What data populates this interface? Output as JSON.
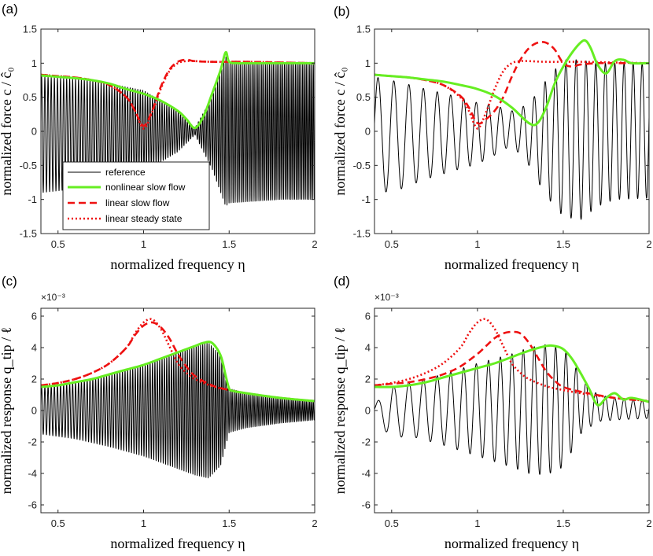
{
  "chart_data": [
    {
      "panel": "(a)",
      "type": "line",
      "xlabel": "normalized frequency η",
      "ylabel": "normalized force c / ĉ₀",
      "xlim": [
        0.4,
        2.0
      ],
      "ylim": [
        -1.5,
        1.5
      ],
      "xticks": [
        "0.5",
        "1",
        "1.5",
        "2"
      ],
      "yticks": [
        "-1.5",
        "-1",
        "-0.5",
        "0",
        "0.5",
        "1",
        "1.5"
      ],
      "exponent": "",
      "legend": {
        "position": "lower-left",
        "entries": [
          {
            "label": "reference",
            "color": "#000000",
            "style": "solid"
          },
          {
            "label": "nonlinear slow flow",
            "color": "#66ee22",
            "style": "solid"
          },
          {
            "label": "linear slow flow",
            "color": "#ee1111",
            "style": "dashed"
          },
          {
            "label": "linear steady state",
            "color": "#ee1111",
            "style": "dotted"
          }
        ]
      },
      "series": [
        {
          "name": "nonlinear slow flow",
          "x": [
            0.4,
            0.5,
            0.6,
            0.7,
            0.8,
            0.9,
            1.0,
            1.1,
            1.2,
            1.25,
            1.3,
            1.35,
            1.4,
            1.45,
            1.48,
            1.5,
            1.55,
            1.6,
            1.8,
            2.0
          ],
          "y": [
            0.82,
            0.8,
            0.78,
            0.75,
            0.7,
            0.62,
            0.55,
            0.45,
            0.3,
            0.18,
            0.05,
            0.22,
            0.55,
            0.9,
            1.16,
            1.02,
            1.0,
            1.0,
            1.0,
            1.0
          ]
        },
        {
          "name": "linear slow flow",
          "x": [
            0.4,
            0.5,
            0.6,
            0.7,
            0.8,
            0.9,
            0.95,
            1.0,
            1.05,
            1.1,
            1.15,
            1.2,
            1.25,
            1.3,
            1.4,
            1.6,
            1.8,
            2.0
          ],
          "y": [
            0.83,
            0.81,
            0.79,
            0.75,
            0.68,
            0.5,
            0.3,
            0.08,
            0.3,
            0.65,
            0.9,
            1.02,
            1.05,
            1.03,
            1.02,
            1.02,
            1.01,
            1.0
          ]
        },
        {
          "name": "linear steady state",
          "x": [
            0.4,
            0.5,
            0.6,
            0.7,
            0.8,
            0.9,
            0.95,
            1.0,
            1.05,
            1.1,
            1.15,
            1.2,
            1.25,
            1.3,
            1.4,
            1.6,
            1.8,
            2.0
          ],
          "y": [
            0.83,
            0.81,
            0.79,
            0.75,
            0.68,
            0.5,
            0.3,
            0.04,
            0.28,
            0.62,
            0.88,
            1.0,
            1.03,
            1.03,
            1.02,
            1.02,
            1.01,
            1.0
          ]
        },
        {
          "name": "reference",
          "x": [
            0.4,
            0.7,
            1.0,
            1.2,
            1.3,
            1.4,
            1.48,
            1.5,
            1.8,
            2.0
          ],
          "y_upper": [
            0.8,
            0.75,
            0.6,
            0.3,
            0.05,
            0.5,
            1.1,
            1.0,
            1.0,
            1.0
          ],
          "y_lower": [
            -0.9,
            -0.82,
            -0.6,
            -0.3,
            -0.05,
            -0.55,
            -1.1,
            -1.05,
            -1.0,
            -1.0
          ],
          "cycles": 120
        }
      ]
    },
    {
      "panel": "(b)",
      "type": "line",
      "xlabel": "normalized frequency η",
      "ylabel": "normalized force c / ĉ₀",
      "xlim": [
        0.4,
        2.0
      ],
      "ylim": [
        -1.5,
        1.5
      ],
      "xticks": [
        "0.5",
        "1",
        "1.5",
        "2"
      ],
      "yticks": [
        "-1.5",
        "-1",
        "-0.5",
        "0",
        "0.5",
        "1",
        "1.5"
      ],
      "exponent": "",
      "series": [
        {
          "name": "nonlinear slow flow",
          "x": [
            0.4,
            0.5,
            0.6,
            0.7,
            0.8,
            0.9,
            1.0,
            1.1,
            1.2,
            1.3,
            1.35,
            1.4,
            1.45,
            1.5,
            1.55,
            1.6,
            1.63,
            1.66,
            1.7,
            1.75,
            1.8,
            1.85,
            1.9,
            2.0
          ],
          "y": [
            0.83,
            0.81,
            0.79,
            0.76,
            0.73,
            0.68,
            0.62,
            0.52,
            0.35,
            0.12,
            0.12,
            0.35,
            0.7,
            0.95,
            1.15,
            1.3,
            1.33,
            1.22,
            0.98,
            0.85,
            1.03,
            1.05,
            1.0,
            1.0
          ]
        },
        {
          "name": "linear slow flow",
          "x": [
            0.4,
            0.5,
            0.6,
            0.7,
            0.8,
            0.9,
            0.95,
            1.0,
            1.05,
            1.1,
            1.15,
            1.2,
            1.25,
            1.3,
            1.35,
            1.4,
            1.45,
            1.5,
            1.55,
            1.6,
            1.7,
            1.8,
            2.0
          ],
          "y": [
            0.83,
            0.81,
            0.79,
            0.75,
            0.68,
            0.52,
            0.35,
            0.12,
            0.18,
            0.3,
            0.5,
            0.8,
            1.05,
            1.22,
            1.3,
            1.3,
            1.2,
            1.0,
            0.95,
            0.98,
            1.0,
            1.0,
            1.0
          ]
        },
        {
          "name": "linear steady state",
          "x": [
            0.4,
            0.5,
            0.6,
            0.7,
            0.8,
            0.9,
            0.95,
            1.0,
            1.05,
            1.1,
            1.15,
            1.2,
            1.25,
            1.3,
            1.4,
            1.6,
            1.8,
            2.0
          ],
          "y": [
            0.83,
            0.81,
            0.79,
            0.75,
            0.68,
            0.5,
            0.3,
            0.04,
            0.28,
            0.62,
            0.88,
            1.0,
            1.03,
            1.03,
            1.02,
            1.02,
            1.01,
            1.0
          ]
        },
        {
          "name": "reference",
          "x": [
            0.4,
            0.55,
            0.7,
            0.9,
            1.0,
            1.1,
            1.2,
            1.3,
            1.4,
            1.5,
            1.6,
            1.7,
            1.8,
            2.0
          ],
          "y_upper": [
            0.8,
            0.72,
            0.62,
            0.5,
            0.42,
            0.38,
            0.3,
            0.4,
            0.75,
            1.05,
            1.05,
            1.0,
            1.0,
            1.0
          ],
          "y_lower": [
            -0.92,
            -0.85,
            -0.7,
            -0.55,
            -0.48,
            -0.35,
            -0.2,
            -0.5,
            -0.95,
            -1.25,
            -1.3,
            -1.1,
            -1.0,
            -0.98
          ],
          "cycles": 24
        }
      ]
    },
    {
      "panel": "(c)",
      "type": "line",
      "xlabel": "normalized frequency η",
      "ylabel": "normalized response q_tip / ℓ",
      "xlim": [
        0.4,
        2.0
      ],
      "ylim": [
        -6.5,
        6.5
      ],
      "xticks": [
        "0.5",
        "1",
        "1.5",
        "2"
      ],
      "yticks": [
        "-6",
        "-4",
        "-2",
        "0",
        "2",
        "4",
        "6"
      ],
      "exponent": "×10⁻³",
      "series": [
        {
          "name": "nonlinear slow flow",
          "x": [
            0.4,
            0.5,
            0.6,
            0.7,
            0.8,
            0.9,
            1.0,
            1.1,
            1.2,
            1.3,
            1.35,
            1.4,
            1.45,
            1.48,
            1.5,
            1.52,
            1.6,
            1.8,
            2.0
          ],
          "y": [
            1.5,
            1.6,
            1.8,
            2.0,
            2.3,
            2.6,
            2.9,
            3.3,
            3.7,
            4.1,
            4.3,
            4.3,
            3.5,
            2.2,
            1.4,
            1.25,
            1.1,
            0.8,
            0.6
          ]
        },
        {
          "name": "linear slow flow",
          "x": [
            0.4,
            0.5,
            0.6,
            0.7,
            0.8,
            0.9,
            0.95,
            1.0,
            1.05,
            1.1,
            1.15,
            1.2,
            1.25,
            1.3,
            1.4,
            1.5,
            1.6,
            1.8,
            2.0
          ],
          "y": [
            1.6,
            1.75,
            2.0,
            2.4,
            3.0,
            4.0,
            4.8,
            5.4,
            5.6,
            5.3,
            4.6,
            3.6,
            2.8,
            2.2,
            1.6,
            1.3,
            1.1,
            0.8,
            0.6
          ]
        },
        {
          "name": "linear steady state",
          "x": [
            0.4,
            0.5,
            0.6,
            0.7,
            0.8,
            0.9,
            0.95,
            1.0,
            1.05,
            1.1,
            1.15,
            1.2,
            1.25,
            1.3,
            1.4,
            1.5,
            1.6,
            1.8,
            2.0
          ],
          "y": [
            1.6,
            1.75,
            2.0,
            2.4,
            3.0,
            4.0,
            4.9,
            5.6,
            5.8,
            5.2,
            4.1,
            3.0,
            2.4,
            2.0,
            1.55,
            1.3,
            1.1,
            0.8,
            0.6
          ]
        },
        {
          "name": "reference",
          "x": [
            0.4,
            0.6,
            0.8,
            1.0,
            1.2,
            1.3,
            1.38,
            1.45,
            1.5,
            1.6,
            1.8,
            2.0
          ],
          "y_upper": [
            1.5,
            1.8,
            2.3,
            2.9,
            3.7,
            4.1,
            4.3,
            3.5,
            1.4,
            1.1,
            0.8,
            0.6
          ],
          "y_lower": [
            -1.5,
            -1.8,
            -2.3,
            -2.9,
            -3.7,
            -4.1,
            -4.3,
            -3.5,
            -1.4,
            -1.1,
            -0.8,
            -0.6
          ],
          "cycles": 120
        }
      ]
    },
    {
      "panel": "(d)",
      "type": "line",
      "xlabel": "normalized frequency η",
      "ylabel": "normalized response q_tip / ℓ",
      "xlim": [
        0.4,
        2.0
      ],
      "ylim": [
        -6.5,
        6.5
      ],
      "xticks": [
        "0.5",
        "1",
        "1.5",
        "2"
      ],
      "yticks": [
        "-6",
        "-4",
        "-2",
        "0",
        "2",
        "4",
        "6"
      ],
      "exponent": "×10⁻³",
      "series": [
        {
          "name": "nonlinear slow flow",
          "x": [
            0.4,
            0.5,
            0.6,
            0.7,
            0.8,
            0.9,
            1.0,
            1.1,
            1.2,
            1.3,
            1.4,
            1.45,
            1.5,
            1.55,
            1.6,
            1.65,
            1.7,
            1.75,
            1.8,
            1.85,
            1.9,
            2.0
          ],
          "y": [
            1.5,
            1.5,
            1.6,
            1.8,
            2.1,
            2.4,
            2.7,
            3.0,
            3.4,
            3.8,
            4.1,
            4.1,
            3.9,
            3.3,
            2.4,
            1.4,
            0.35,
            0.8,
            1.1,
            0.7,
            0.8,
            0.55
          ]
        },
        {
          "name": "linear slow flow",
          "x": [
            0.4,
            0.5,
            0.6,
            0.7,
            0.8,
            0.9,
            1.0,
            1.05,
            1.1,
            1.15,
            1.2,
            1.25,
            1.3,
            1.35,
            1.4,
            1.45,
            1.5,
            1.6,
            1.8,
            2.0
          ],
          "y": [
            1.6,
            1.7,
            1.8,
            2.0,
            2.3,
            2.8,
            3.6,
            4.1,
            4.6,
            4.9,
            5.0,
            4.9,
            4.3,
            3.4,
            2.5,
            1.9,
            1.5,
            1.2,
            0.8,
            0.6
          ]
        },
        {
          "name": "linear steady state",
          "x": [
            0.4,
            0.5,
            0.6,
            0.7,
            0.8,
            0.9,
            0.95,
            1.0,
            1.05,
            1.1,
            1.15,
            1.2,
            1.25,
            1.3,
            1.4,
            1.5,
            1.6,
            1.8,
            2.0
          ],
          "y": [
            1.6,
            1.75,
            2.0,
            2.4,
            3.0,
            4.0,
            4.9,
            5.6,
            5.8,
            5.2,
            4.1,
            3.0,
            2.4,
            2.0,
            1.55,
            1.3,
            1.1,
            0.8,
            0.6
          ]
        },
        {
          "name": "reference",
          "x": [
            0.4,
            0.5,
            0.6,
            0.8,
            1.0,
            1.2,
            1.3,
            1.4,
            1.5,
            1.55,
            1.6,
            1.7,
            1.8,
            2.0
          ],
          "y_upper": [
            0.4,
            1.5,
            1.8,
            2.3,
            3.0,
            3.6,
            4.0,
            4.2,
            3.9,
            3.2,
            2.2,
            1.0,
            0.8,
            0.6
          ],
          "y_lower": [
            -0.4,
            -1.8,
            -1.6,
            -2.2,
            -2.9,
            -3.6,
            -4.0,
            -4.1,
            -3.6,
            -2.6,
            -1.5,
            -0.7,
            -0.6,
            -0.5
          ],
          "cycles": 24
        }
      ]
    }
  ]
}
